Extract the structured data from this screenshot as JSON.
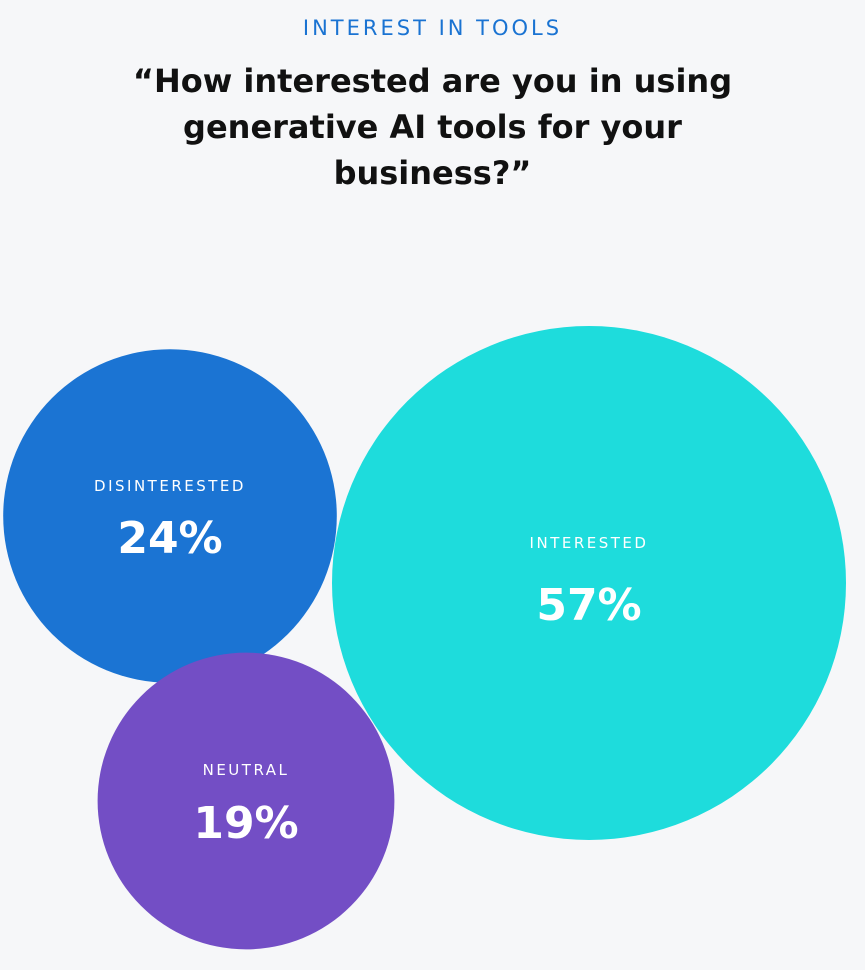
{
  "eyebrow": "INTEREST IN TOOLS",
  "question": "“How interested are you in using generative AI tools for your business?”",
  "colors": {
    "background": "#f6f7f9",
    "eyebrow": "#1a73d2",
    "question": "#111111",
    "label_text": "#ffffff"
  },
  "chart_data": {
    "type": "bubble",
    "unit": "%",
    "categories": [
      "DISINTERESTED",
      "INTERESTED",
      "NEUTRAL"
    ],
    "values": [
      24,
      57,
      19
    ],
    "bubbles": [
      {
        "label": "DISINTERESTED",
        "value": 24,
        "display": "24%",
        "color": "#1b74d3"
      },
      {
        "label": "INTERESTED",
        "value": 57,
        "display": "57%",
        "color": "#1edcdc"
      },
      {
        "label": "NEUTRAL",
        "value": 19,
        "display": "19%",
        "color": "#734ec5"
      }
    ]
  }
}
